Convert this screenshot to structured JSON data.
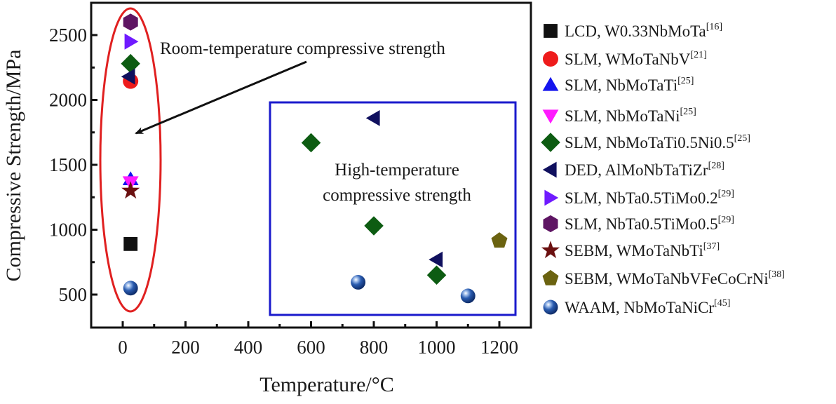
{
  "chart_data": {
    "type": "scatter",
    "title": "",
    "xlabel": "Temperature/°C",
    "ylabel": "Compressive Strength/MPa",
    "xlim": [
      -100,
      1260
    ],
    "ylim": [
      250,
      2750
    ],
    "xticks": [
      0,
      200,
      400,
      600,
      800,
      1000,
      1200
    ],
    "xtick_labels": [
      "0",
      "200",
      "400",
      "600",
      "800",
      "1000",
      "1200"
    ],
    "yticks": [
      500,
      1000,
      1500,
      2000,
      2500
    ],
    "ytick_labels": [
      "500",
      "1000",
      "1500",
      "2000",
      "2500"
    ],
    "grid": false,
    "legend_position": "right",
    "annotations": [
      {
        "id": "room",
        "text": "Room-temperature compressive strength"
      },
      {
        "id": "high",
        "lines": [
          "High-temperature",
          "compressive strength"
        ]
      }
    ],
    "series": [
      {
        "name": "LCD, W0.33NbMoTa",
        "ref": "[16]",
        "marker": "square",
        "color": "#111111",
        "points": [
          [
            25,
            890
          ]
        ]
      },
      {
        "name": "SLM, WMoTaNbV",
        "ref": "[21]",
        "marker": "circle",
        "color": "#ee1c1c",
        "points": [
          [
            25,
            2145
          ]
        ]
      },
      {
        "name": "SLM, NbMoTaTi",
        "ref": "[25]",
        "marker": "triangle-up",
        "color": "#1515ee",
        "points": [
          [
            25,
            1390
          ]
        ]
      },
      {
        "name": "SLM, NbMoTaNi",
        "ref": "[25]",
        "marker": "triangle-down",
        "color": "#ff1aff",
        "points": [
          [
            25,
            1365
          ]
        ]
      },
      {
        "name": "SLM, NbMoTaTi0.5Ni0.5",
        "ref": "[25]",
        "marker": "diamond",
        "color": "#0d5c12",
        "points": [
          [
            25,
            2280
          ],
          [
            600,
            1670
          ],
          [
            800,
            1030
          ],
          [
            1000,
            650
          ]
        ]
      },
      {
        "name": "DED, AlMoNbTaTiZr",
        "ref": "[28]",
        "marker": "triangle-left",
        "color": "#10105e",
        "points": [
          [
            20,
            2180
          ],
          [
            800,
            1860
          ],
          [
            1000,
            770
          ]
        ]
      },
      {
        "name": "SLM, NbTa0.5TiMo0.2",
        "ref": "[29]",
        "marker": "triangle-right",
        "color": "#6f1aff",
        "points": [
          [
            25,
            2450
          ]
        ]
      },
      {
        "name": "SLM, NbTa0.5TiMo0.5",
        "ref": "[29]",
        "marker": "hexagon",
        "color": "#5e1563",
        "points": [
          [
            25,
            2600
          ]
        ]
      },
      {
        "name": "SEBM, WMoTaNbTi",
        "ref": "[37]",
        "marker": "star",
        "color": "#6b1010",
        "points": [
          [
            25,
            1300
          ]
        ]
      },
      {
        "name": "SEBM, WMoTaNbVFeCoCrNi",
        "ref": "[38]",
        "marker": "pentagon",
        "color": "#6b6310",
        "points": [
          [
            1200,
            915
          ]
        ]
      },
      {
        "name": "WAAM, NbMoTaNiCr",
        "ref": "[45]",
        "marker": "sphere",
        "color": "#1f4fa0",
        "points": [
          [
            25,
            550
          ],
          [
            750,
            595
          ],
          [
            1100,
            490
          ]
        ]
      }
    ],
    "colors": {
      "room_ellipse": "#e02020",
      "high_box": "#1a1acc",
      "axis": "#111111",
      "arrow": "#111111"
    }
  }
}
